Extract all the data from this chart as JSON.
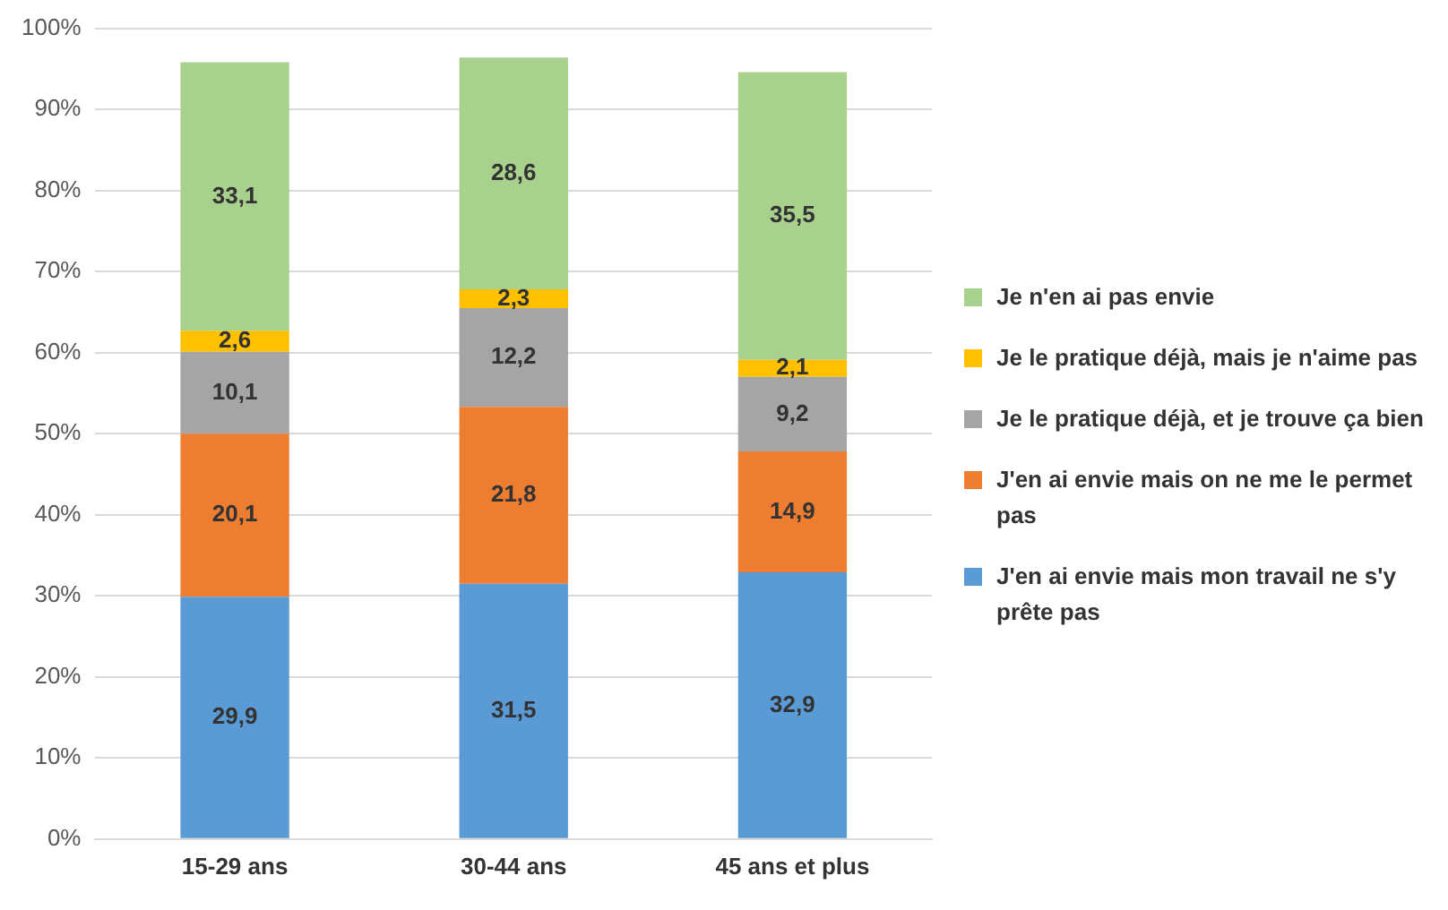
{
  "chart_data": {
    "type": "bar",
    "stacked": true,
    "categories": [
      "15-29 ans",
      "30-44 ans",
      "45 ans et plus"
    ],
    "series": [
      {
        "name": "J'en ai envie mais mon travail ne s'y prête pas",
        "color": "#5b9bd5",
        "values": [
          29.9,
          31.5,
          32.9
        ],
        "value_labels": [
          "29,9",
          "31,5",
          "32,9"
        ]
      },
      {
        "name": "J'en ai envie mais on ne me le permet pas",
        "color": "#ed7d31",
        "values": [
          20.1,
          21.8,
          14.9
        ],
        "value_labels": [
          "20,1",
          "21,8",
          "14,9"
        ]
      },
      {
        "name": "Je le pratique déjà, et je trouve ça bien",
        "color": "#a5a5a5",
        "values": [
          10.1,
          12.2,
          9.2
        ],
        "value_labels": [
          "10,1",
          "12,2",
          "9,2"
        ]
      },
      {
        "name": "Je le pratique déjà, mais je n'aime pas",
        "color": "#ffc000",
        "values": [
          2.6,
          2.3,
          2.1
        ],
        "value_labels": [
          "2,6",
          "2,3",
          "2,1"
        ]
      },
      {
        "name": "Je n'en ai pas envie",
        "color": "#a9d18e",
        "values": [
          33.1,
          28.6,
          35.5
        ],
        "value_labels": [
          "33,1",
          "28,6",
          "35,5"
        ]
      }
    ],
    "ylim": [
      0,
      100
    ],
    "yticks": [
      {
        "value": 0,
        "label": "0%"
      },
      {
        "value": 10,
        "label": "10%"
      },
      {
        "value": 20,
        "label": "20%"
      },
      {
        "value": 30,
        "label": "30%"
      },
      {
        "value": 40,
        "label": "40%"
      },
      {
        "value": 50,
        "label": "50%"
      },
      {
        "value": 60,
        "label": "60%"
      },
      {
        "value": 70,
        "label": "70%"
      },
      {
        "value": 80,
        "label": "80%"
      },
      {
        "value": 90,
        "label": "90%"
      },
      {
        "value": 100,
        "label": "100%"
      }
    ],
    "grid": "y",
    "legend": "right"
  }
}
